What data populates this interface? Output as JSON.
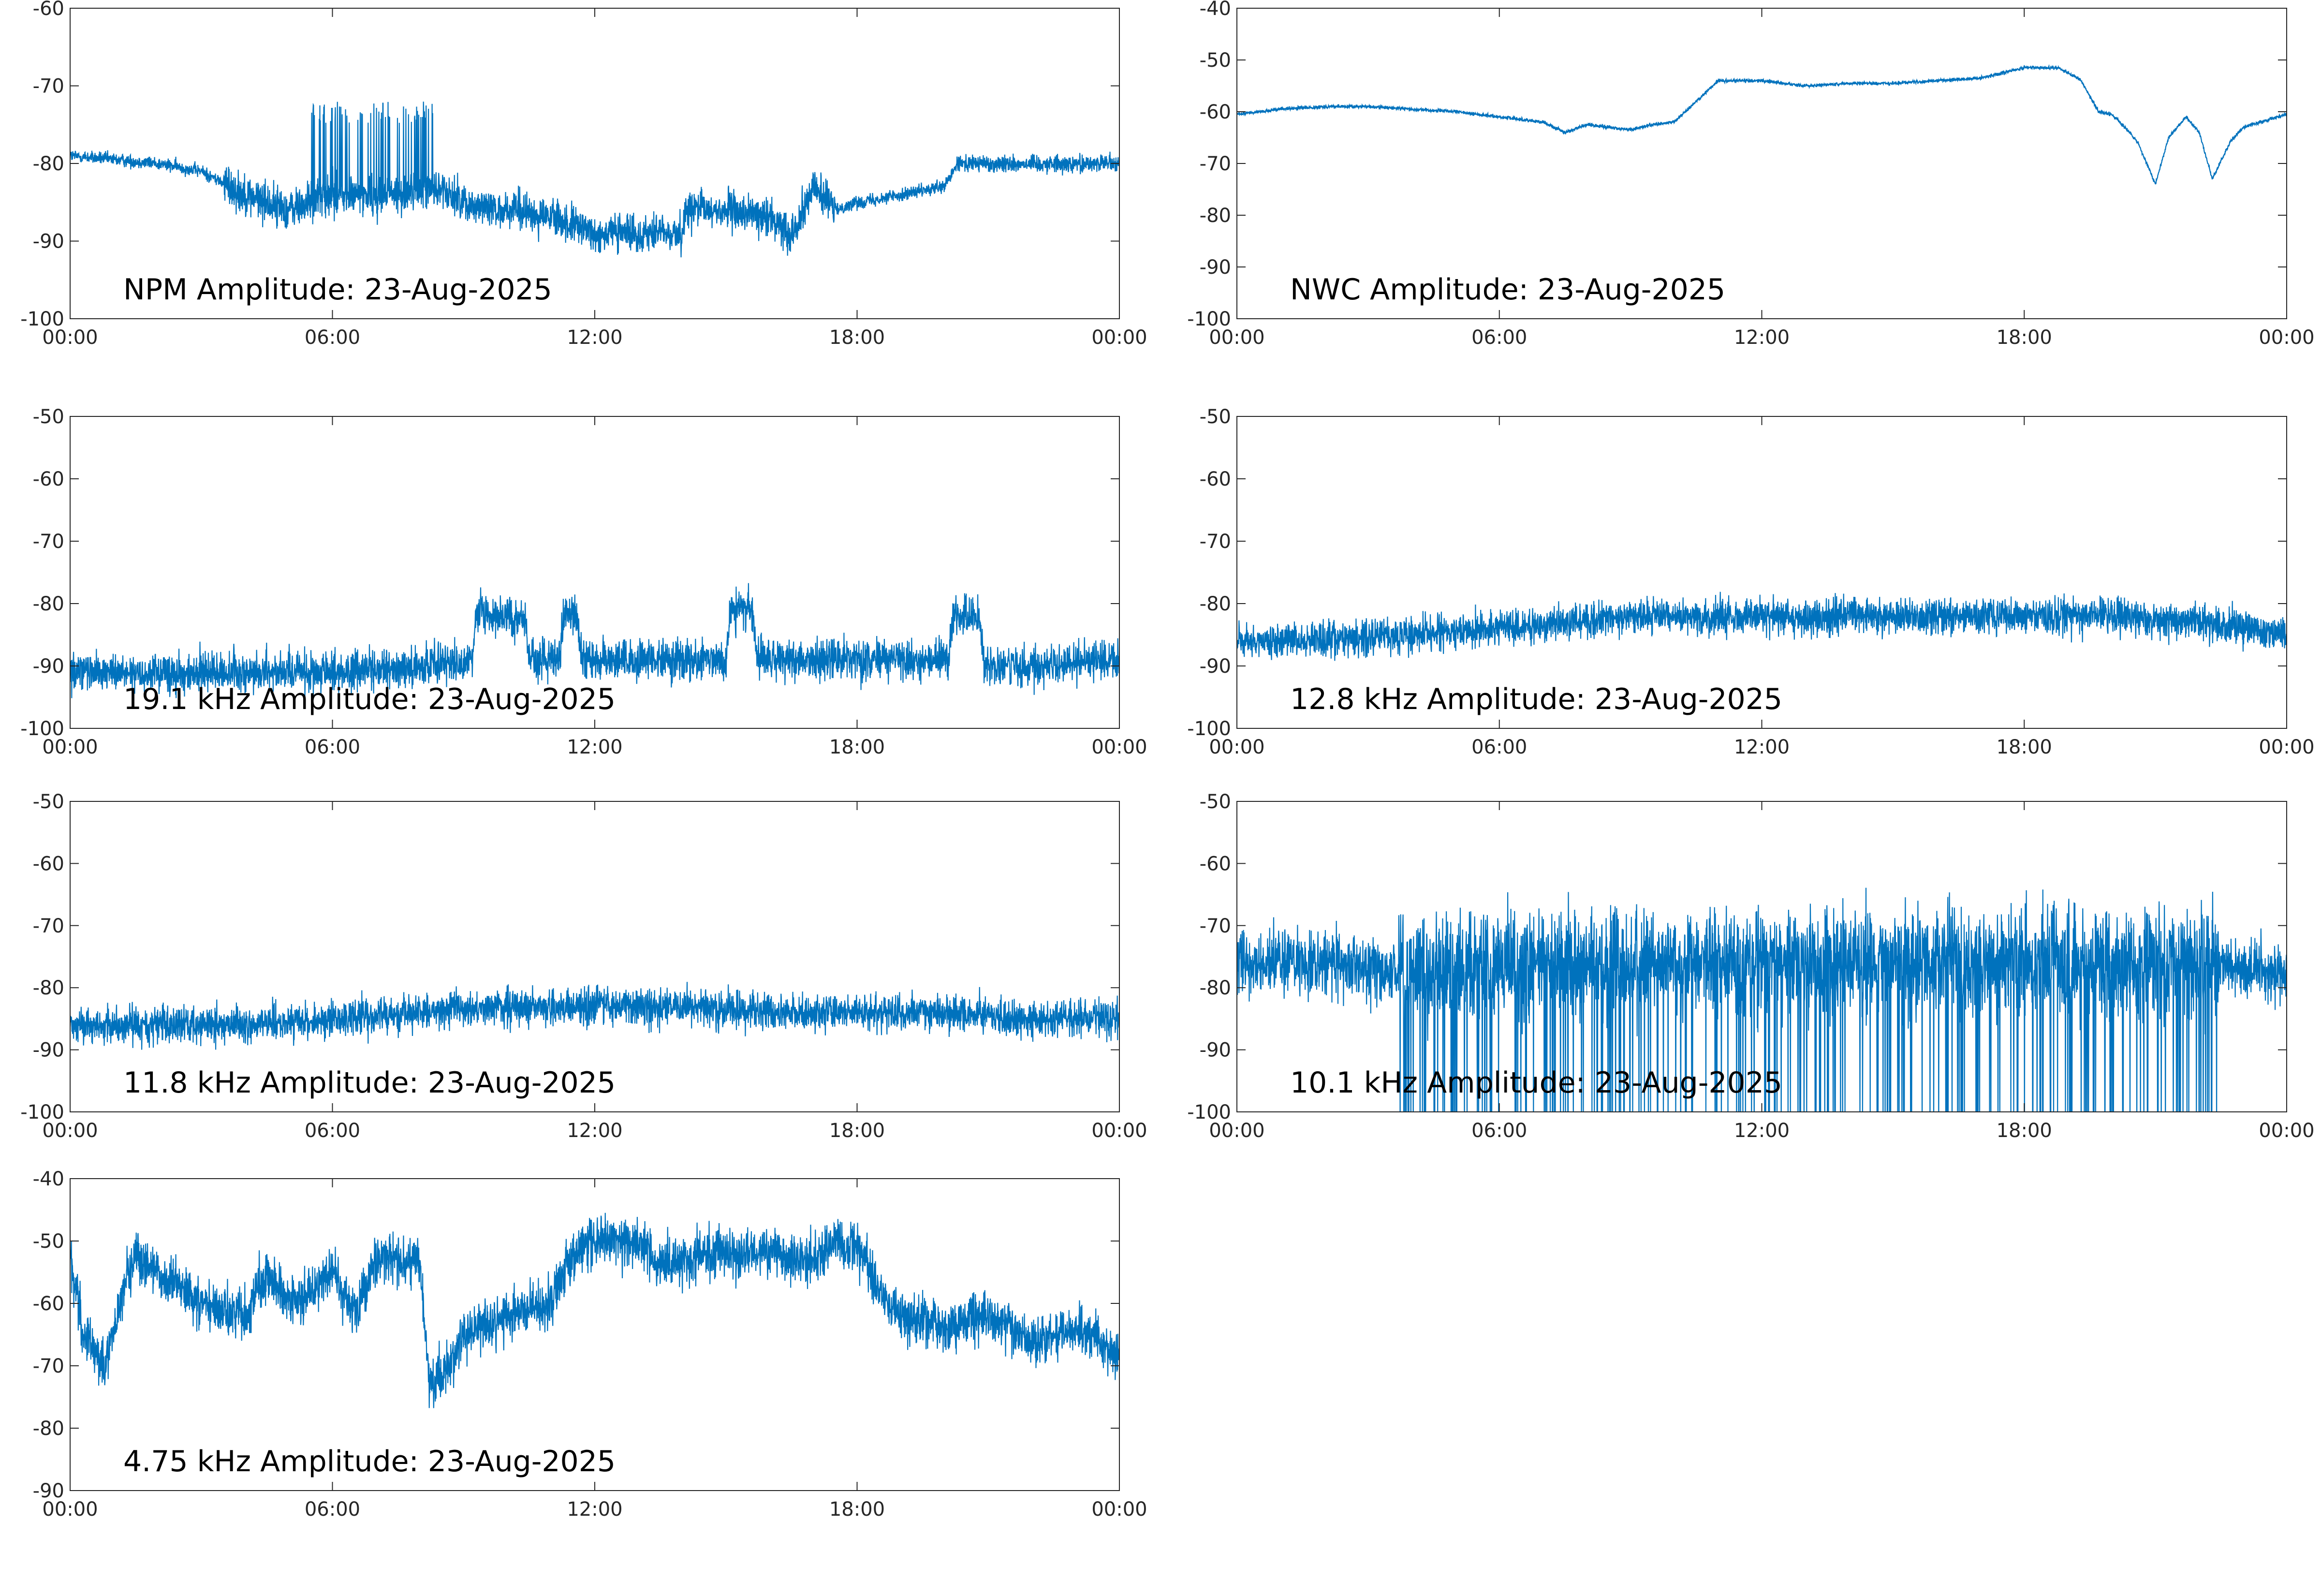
{
  "colors": {
    "series": "#0072bd",
    "axis": "#262626",
    "background": "#ffffff"
  },
  "chart_data": [
    {
      "type": "line",
      "title": "NPM Amplitude: 23-Aug-2025",
      "xlim": [
        0,
        24
      ],
      "ylim": [
        -100,
        -60
      ],
      "xticks": [
        0,
        6,
        12,
        18,
        24
      ],
      "xticklabels": [
        "00:00",
        "06:00",
        "12:00",
        "18:00",
        "00:00"
      ],
      "yticks": [
        -100,
        -90,
        -80,
        -70,
        -60
      ],
      "yticklabels": [
        "-100",
        "-90",
        "-80",
        "-70",
        "-60"
      ],
      "grid": false,
      "series": [
        {
          "x": [
            0,
            1,
            2,
            3,
            4,
            5,
            6,
            7,
            8,
            8.3,
            9,
            10,
            11,
            12,
            13,
            14,
            14.1,
            15,
            16,
            16.5,
            17,
            17.5,
            18,
            19,
            20,
            20.3,
            21,
            22,
            23,
            24
          ],
          "y": [
            -79,
            -79.5,
            -80,
            -81,
            -84,
            -86,
            -84,
            -84,
            -84,
            -83,
            -85,
            -86,
            -87,
            -89,
            -89,
            -89,
            -86,
            -86,
            -87,
            -89,
            -83,
            -86,
            -85,
            -84,
            -83,
            -80,
            -80,
            -80,
            -80,
            -80
          ]
        }
      ]
    },
    {
      "type": "line",
      "title": "NWC Amplitude: 23-Aug-2025",
      "xlim": [
        0,
        24
      ],
      "ylim": [
        -100,
        -40
      ],
      "xticks": [
        0,
        6,
        12,
        18,
        24
      ],
      "xticklabels": [
        "00:00",
        "06:00",
        "12:00",
        "18:00",
        "00:00"
      ],
      "yticks": [
        -100,
        -90,
        -80,
        -70,
        -60,
        -50,
        -40
      ],
      "yticklabels": [
        "-100",
        "-90",
        "-80",
        "-70",
        "-60",
        "-50",
        "-40"
      ],
      "grid": false,
      "series": [
        {
          "x": [
            0,
            1,
            2,
            3,
            4,
            5,
            6,
            6.5,
            7,
            7.5,
            8,
            8.5,
            9,
            9.5,
            10,
            10.5,
            11,
            12,
            13,
            14,
            15,
            16,
            17,
            18,
            18.8,
            19.3,
            19.7,
            20,
            20.3,
            20.6,
            21,
            21.3,
            21.7,
            22,
            22.3,
            22.7,
            23,
            24
          ],
          "y": [
            -60.5,
            -59.5,
            -59,
            -59,
            -59.5,
            -60,
            -61,
            -61.5,
            -62,
            -64,
            -62.5,
            -63,
            -63.5,
            -62.5,
            -62,
            -58,
            -54,
            -54,
            -55,
            -54.5,
            -54.5,
            -54,
            -53.5,
            -51.5,
            -51.5,
            -54,
            -60,
            -60.5,
            -63,
            -66,
            -74,
            -65,
            -61,
            -64,
            -73,
            -66,
            -63,
            -60.5
          ]
        }
      ]
    },
    {
      "type": "line",
      "title": "19.1 kHz Amplitude: 23-Aug-2025",
      "xlim": [
        0,
        24
      ],
      "ylim": [
        -100,
        -50
      ],
      "xticks": [
        0,
        6,
        12,
        18,
        24
      ],
      "xticklabels": [
        "00:00",
        "06:00",
        "12:00",
        "18:00",
        "00:00"
      ],
      "yticks": [
        -100,
        -90,
        -80,
        -70,
        -60,
        -50
      ],
      "yticklabels": [
        "-100",
        "-90",
        "-80",
        "-70",
        "-60",
        "-50"
      ],
      "grid": false,
      "series": [
        {
          "x": [
            0,
            2,
            4,
            6,
            8,
            9.2,
            9.3,
            10.4,
            10.5,
            11.2,
            11.3,
            11.6,
            11.7,
            14,
            15,
            15.1,
            15.6,
            15.7,
            17,
            19.5,
            20.1,
            20.2,
            20.8,
            20.9,
            22,
            24
          ],
          "y": [
            -91,
            -91,
            -91,
            -91,
            -90,
            -89,
            -82,
            -82,
            -89,
            -89,
            -81,
            -82,
            -89,
            -89,
            -89,
            -81,
            -81,
            -89,
            -89,
            -89,
            -89,
            -82,
            -82,
            -90,
            -90,
            -89
          ]
        }
      ]
    },
    {
      "type": "line",
      "title": "12.8 kHz Amplitude: 23-Aug-2025",
      "xlim": [
        0,
        24
      ],
      "ylim": [
        -100,
        -50
      ],
      "xticks": [
        0,
        6,
        12,
        18,
        24
      ],
      "xticklabels": [
        "00:00",
        "06:00",
        "12:00",
        "18:00",
        "00:00"
      ],
      "yticks": [
        -100,
        -90,
        -80,
        -70,
        -60,
        -50
      ],
      "yticklabels": [
        "-100",
        "-90",
        "-80",
        "-70",
        "-60",
        "-50"
      ],
      "grid": false,
      "series": [
        {
          "x": [
            0,
            2,
            4,
            6,
            8,
            9,
            10,
            12,
            14,
            16,
            18,
            20,
            22,
            24
          ],
          "y": [
            -86,
            -86,
            -85,
            -84,
            -83,
            -82,
            -82,
            -82,
            -82,
            -82,
            -82,
            -82,
            -83,
            -85
          ]
        }
      ]
    },
    {
      "type": "line",
      "title": "11.8 kHz Amplitude: 23-Aug-2025",
      "xlim": [
        0,
        24
      ],
      "ylim": [
        -100,
        -50
      ],
      "xticks": [
        0,
        6,
        12,
        18,
        24
      ],
      "xticklabels": [
        "00:00",
        "06:00",
        "12:00",
        "18:00",
        "00:00"
      ],
      "yticks": [
        -100,
        -90,
        -80,
        -70,
        -60,
        -50
      ],
      "yticklabels": [
        "-100",
        "-90",
        "-80",
        "-70",
        "-60",
        "-50"
      ],
      "grid": false,
      "series": [
        {
          "x": [
            0,
            2,
            4,
            6,
            8,
            10,
            12,
            14,
            16,
            18,
            20,
            22,
            24
          ],
          "y": [
            -86,
            -86,
            -86,
            -85,
            -84,
            -83,
            -83,
            -83,
            -84,
            -84,
            -84,
            -85,
            -85
          ]
        }
      ]
    },
    {
      "type": "line",
      "title": "10.1 kHz Amplitude: 23-Aug-2025",
      "xlim": [
        0,
        24
      ],
      "ylim": [
        -100,
        -50
      ],
      "xticks": [
        0,
        6,
        12,
        18,
        24
      ],
      "xticklabels": [
        "00:00",
        "06:00",
        "12:00",
        "18:00",
        "00:00"
      ],
      "yticks": [
        -100,
        -90,
        -80,
        -70,
        -60,
        -50
      ],
      "yticklabels": [
        "-100",
        "-90",
        "-80",
        "-70",
        "-60",
        "-50"
      ],
      "grid": false,
      "series": [
        {
          "x": [
            0,
            1,
            2,
            3,
            3.7,
            4,
            6,
            8,
            10,
            12,
            14,
            16,
            18,
            20,
            22,
            22.5,
            23,
            24
          ],
          "y": [
            -76,
            -76,
            -76,
            -77,
            -78,
            -78,
            -76,
            -76,
            -76,
            -76,
            -76,
            -76,
            -76,
            -76,
            -76,
            -76,
            -77,
            -78
          ]
        }
      ]
    },
    {
      "type": "line",
      "title": "4.75 kHz Amplitude: 23-Aug-2025",
      "xlim": [
        0,
        24
      ],
      "ylim": [
        -90,
        -40
      ],
      "xticks": [
        0,
        6,
        12,
        18,
        24
      ],
      "xticklabels": [
        "00:00",
        "06:00",
        "12:00",
        "18:00",
        "00:00"
      ],
      "yticks": [
        -90,
        -80,
        -70,
        -60,
        -50,
        -40
      ],
      "yticklabels": [
        "-90",
        "-80",
        "-70",
        "-60",
        "-50",
        "-40"
      ],
      "grid": false,
      "series": [
        {
          "x": [
            0,
            0.3,
            0.8,
            1.2,
            1.5,
            2,
            3,
            4,
            4.5,
            5,
            5.5,
            6,
            6.5,
            7,
            7.5,
            8,
            8.2,
            8.5,
            9,
            10,
            11,
            11.5,
            12,
            13,
            13.5,
            14,
            15,
            16,
            17,
            17.5,
            18,
            18.5,
            19,
            20,
            21,
            22,
            23,
            24
          ],
          "y": [
            -52,
            -65,
            -70,
            -58,
            -52,
            -55,
            -60,
            -62,
            -55,
            -60,
            -58,
            -55,
            -62,
            -53,
            -53,
            -53,
            -72,
            -72,
            -65,
            -62,
            -60,
            -52,
            -50,
            -50,
            -54,
            -53,
            -52,
            -52,
            -53,
            -50,
            -51,
            -58,
            -62,
            -64,
            -62,
            -66,
            -64,
            -68
          ]
        }
      ]
    }
  ]
}
